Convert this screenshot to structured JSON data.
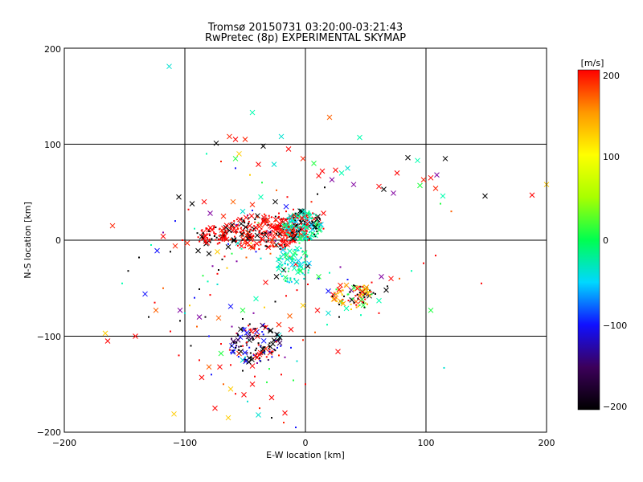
{
  "chart_data": {
    "type": "scatter",
    "title": "Tromsø 20150731 03:20:00-03:21:43",
    "subtitle": "RwPretec (8p) EXPERIMENTAL SKYMAP",
    "xlabel": "E-W location [km]",
    "ylabel": "N-S location [km]",
    "xlim": [
      -200,
      200
    ],
    "ylim": [
      -200,
      200
    ],
    "x_ticks": [
      "−200",
      "−100",
      "0",
      "100",
      "200"
    ],
    "y_ticks": [
      "−200",
      "−100",
      "0",
      "100",
      "200"
    ],
    "grid": true,
    "colorbar": {
      "label": "[m/s]",
      "range": [
        -200,
        200
      ],
      "ticks": [
        "200",
        "100",
        "0",
        "−100",
        "−200"
      ],
      "colors": [
        "#000000",
        "#3c005a",
        "#1010ff",
        "#00d8ff",
        "#00ff50",
        "#a8ff00",
        "#ffff00",
        "#ff9800",
        "#ff0000"
      ]
    },
    "series": [
      {
        "name": "",
        "marker": "x",
        "points": [
          [
            -113,
            181
          ],
          [
            -44,
            133
          ],
          [
            -58,
            105
          ],
          [
            -50,
            105
          ],
          [
            -35,
            98
          ],
          [
            -20,
            108
          ],
          [
            -14,
            95
          ],
          [
            20,
            128
          ],
          [
            45,
            107
          ],
          [
            -74,
            101
          ],
          [
            -63,
            108
          ],
          [
            -55,
            90
          ],
          [
            -58,
            85
          ],
          [
            -39,
            79
          ],
          [
            -26,
            79
          ],
          [
            -2,
            85
          ],
          [
            7,
            80
          ],
          [
            14,
            72
          ],
          [
            30,
            70
          ],
          [
            35,
            75
          ],
          [
            25,
            73
          ],
          [
            11,
            67
          ],
          [
            22,
            63
          ],
          [
            40,
            58
          ],
          [
            61,
            56
          ],
          [
            65,
            53
          ],
          [
            73,
            49
          ],
          [
            76,
            70
          ],
          [
            85,
            86
          ],
          [
            93,
            83
          ],
          [
            95,
            57
          ],
          [
            98,
            63
          ],
          [
            104,
            65
          ],
          [
            109,
            68
          ],
          [
            116,
            85
          ],
          [
            108,
            54
          ],
          [
            114,
            46
          ],
          [
            149,
            46
          ],
          [
            188,
            47
          ],
          [
            200,
            58
          ],
          [
            -105,
            45
          ],
          [
            -94,
            38
          ],
          [
            -84,
            40
          ],
          [
            -79,
            28
          ],
          [
            -68,
            25
          ],
          [
            -60,
            40
          ],
          [
            -52,
            30
          ],
          [
            -44,
            37
          ],
          [
            -37,
            45
          ],
          [
            -25,
            40
          ],
          [
            -16,
            35
          ],
          [
            -9,
            26
          ],
          [
            -3,
            22
          ],
          [
            2,
            26
          ],
          [
            7,
            18
          ],
          [
            15,
            28
          ],
          [
            3,
            14
          ],
          [
            -6,
            9
          ],
          [
            -13,
            12
          ],
          [
            -22,
            14
          ],
          [
            -30,
            8
          ],
          [
            -40,
            5
          ],
          [
            -46,
            2
          ],
          [
            -56,
            -3
          ],
          [
            -64,
            -7
          ],
          [
            -73,
            -12
          ],
          [
            -80,
            -14
          ],
          [
            -89,
            -11
          ],
          [
            -98,
            -3
          ],
          [
            -108,
            -6
          ],
          [
            -123,
            -11
          ],
          [
            -118,
            4
          ],
          [
            -160,
            15
          ],
          [
            -133,
            -56
          ],
          [
            -124,
            -73
          ],
          [
            -104,
            -73
          ],
          [
            -88,
            -80
          ],
          [
            -72,
            -81
          ],
          [
            -62,
            -69
          ],
          [
            -52,
            -73
          ],
          [
            -41,
            -61
          ],
          [
            -33,
            -44
          ],
          [
            -24,
            -38
          ],
          [
            -18,
            -31
          ],
          [
            -8,
            -25
          ],
          [
            2,
            -27
          ],
          [
            11,
            -38
          ],
          [
            19,
            -53
          ],
          [
            29,
            -47
          ],
          [
            38,
            -52
          ],
          [
            45,
            -58
          ],
          [
            53,
            -58
          ],
          [
            61,
            -63
          ],
          [
            67,
            -52
          ],
          [
            71,
            -40
          ],
          [
            63,
            -38
          ],
          [
            50,
            -51
          ],
          [
            42,
            -64
          ],
          [
            34,
            -71
          ],
          [
            19,
            -76
          ],
          [
            10,
            -73
          ],
          [
            -2,
            -68
          ],
          [
            -13,
            -79
          ],
          [
            -22,
            -88
          ],
          [
            -33,
            -91
          ],
          [
            -45,
            -95
          ],
          [
            -54,
            -101
          ],
          [
            -61,
            -110
          ],
          [
            -70,
            -118
          ],
          [
            -80,
            -132
          ],
          [
            -86,
            -143
          ],
          [
            -62,
            -155
          ],
          [
            -44,
            -150
          ],
          [
            -28,
            -164
          ],
          [
            -17,
            -180
          ],
          [
            -51,
            -161
          ],
          [
            -39,
            -182
          ],
          [
            -64,
            -185
          ],
          [
            -109,
            -181
          ],
          [
            -71,
            -132
          ],
          [
            -52,
            -125
          ],
          [
            -44,
            -131
          ],
          [
            -33,
            -113
          ],
          [
            -22,
            -99
          ],
          [
            -12,
            -93
          ],
          [
            -27,
            -108
          ],
          [
            -38,
            -119
          ],
          [
            -55,
            -118
          ],
          [
            -166,
            -97
          ],
          [
            -141,
            -100
          ],
          [
            -164,
            -105
          ],
          [
            27,
            -116
          ],
          [
            104,
            -73
          ],
          [
            -75,
            -175
          ]
        ]
      },
      {
        "name": "",
        "marker": "dot",
        "points": [
          [
            -83,
            -80
          ],
          [
            -79,
            -57
          ],
          [
            -73,
            -46
          ],
          [
            -72,
            -31
          ],
          [
            -67,
            -17
          ],
          [
            -64,
            -4
          ],
          [
            -61,
            9
          ],
          [
            -57,
            16
          ],
          [
            -53,
            22
          ],
          [
            -48,
            26
          ],
          [
            -44,
            31
          ],
          [
            -39,
            18
          ],
          [
            -34,
            27
          ],
          [
            -31,
            16
          ],
          [
            -28,
            24
          ],
          [
            -25,
            20
          ],
          [
            -22,
            28
          ],
          [
            -19,
            22
          ],
          [
            -16,
            30
          ],
          [
            -13,
            25
          ],
          [
            -10,
            32
          ],
          [
            -7,
            27
          ],
          [
            -4,
            20
          ],
          [
            -1,
            24
          ],
          [
            3,
            30
          ],
          [
            6,
            23
          ],
          [
            9,
            16
          ],
          [
            12,
            22
          ],
          [
            15,
            12
          ],
          [
            -2,
            5
          ],
          [
            -5,
            -3
          ],
          [
            -9,
            -10
          ],
          [
            -13,
            -17
          ],
          [
            -17,
            -24
          ],
          [
            -21,
            -9
          ],
          [
            -25,
            -1
          ],
          [
            -29,
            -14
          ],
          [
            -33,
            -6
          ],
          [
            -37,
            -19
          ],
          [
            -41,
            -12
          ],
          [
            -45,
            -3
          ],
          [
            -49,
            -18
          ],
          [
            -53,
            -9
          ],
          [
            -57,
            -22
          ],
          [
            -61,
            -14
          ],
          [
            -65,
            -29
          ],
          [
            -69,
            -20
          ],
          [
            -73,
            -35
          ],
          [
            -77,
            -27
          ],
          [
            -81,
            -43
          ],
          [
            -85,
            -37
          ],
          [
            -88,
            -51
          ],
          [
            -92,
            -60
          ],
          [
            -96,
            -68
          ],
          [
            -100,
            -76
          ],
          [
            -104,
            -84
          ],
          [
            -90,
            -90
          ],
          [
            -80,
            -100
          ],
          [
            -70,
            -108
          ],
          [
            -60,
            -115
          ],
          [
            -50,
            -122
          ],
          [
            -40,
            -128
          ],
          [
            -30,
            -134
          ],
          [
            -20,
            -140
          ],
          [
            -10,
            -146
          ],
          [
            0,
            -150
          ],
          [
            -57,
            -97
          ],
          [
            -47,
            -104
          ],
          [
            -37,
            -110
          ],
          [
            -27,
            -116
          ],
          [
            -17,
            -122
          ],
          [
            -7,
            -126
          ],
          [
            -62,
            -130
          ],
          [
            -52,
            -136
          ],
          [
            -42,
            -142
          ],
          [
            -32,
            -148
          ],
          [
            -22,
            -120
          ],
          [
            -12,
            -112
          ],
          [
            -2,
            -104
          ],
          [
            8,
            -96
          ],
          [
            18,
            -88
          ],
          [
            28,
            -80
          ],
          [
            38,
            -72
          ],
          [
            48,
            -64
          ],
          [
            58,
            -56
          ],
          [
            68,
            -48
          ],
          [
            78,
            -40
          ],
          [
            88,
            -32
          ],
          [
            98,
            -24
          ],
          [
            108,
            -16
          ],
          [
            24,
            -56
          ],
          [
            31,
            -62
          ],
          [
            37,
            -54
          ],
          [
            43,
            -48
          ],
          [
            49,
            -70
          ],
          [
            55,
            -44
          ],
          [
            61,
            -76
          ],
          [
            35,
            -41
          ],
          [
            28,
            -67
          ],
          [
            46,
            -78
          ],
          [
            -118,
            -50
          ],
          [
            -125,
            -65
          ],
          [
            -130,
            -80
          ],
          [
            -112,
            -95
          ],
          [
            -95,
            -110
          ],
          [
            -105,
            -120
          ],
          [
            -88,
            -125
          ],
          [
            -78,
            -140
          ],
          [
            -68,
            -150
          ],
          [
            -58,
            -160
          ],
          [
            -48,
            -168
          ],
          [
            -38,
            -175
          ],
          [
            -28,
            -185
          ],
          [
            -18,
            -190
          ],
          [
            -8,
            -195
          ],
          [
            115,
            -133
          ],
          [
            146,
            -45
          ],
          [
            112,
            38
          ],
          [
            121,
            30
          ],
          [
            -61,
            -90
          ],
          [
            -52,
            -82
          ],
          [
            -43,
            -76
          ],
          [
            -34,
            -70
          ],
          [
            -25,
            -64
          ],
          [
            -16,
            -58
          ],
          [
            -7,
            -52
          ],
          [
            2,
            -46
          ],
          [
            11,
            -40
          ],
          [
            20,
            -34
          ],
          [
            29,
            -28
          ],
          [
            5,
            40
          ],
          [
            10,
            48
          ],
          [
            16,
            55
          ],
          [
            -15,
            45
          ],
          [
            -24,
            52
          ],
          [
            -36,
            60
          ],
          [
            -46,
            68
          ],
          [
            -58,
            75
          ],
          [
            -70,
            82
          ],
          [
            -82,
            90
          ],
          [
            -97,
            32
          ],
          [
            -108,
            20
          ],
          [
            -118,
            8
          ],
          [
            -128,
            -5
          ],
          [
            -138,
            -18
          ],
          [
            -147,
            -32
          ],
          [
            -152,
            -45
          ],
          [
            -92,
            12
          ],
          [
            -102,
            0
          ],
          [
            -112,
            -12
          ]
        ]
      }
    ]
  }
}
